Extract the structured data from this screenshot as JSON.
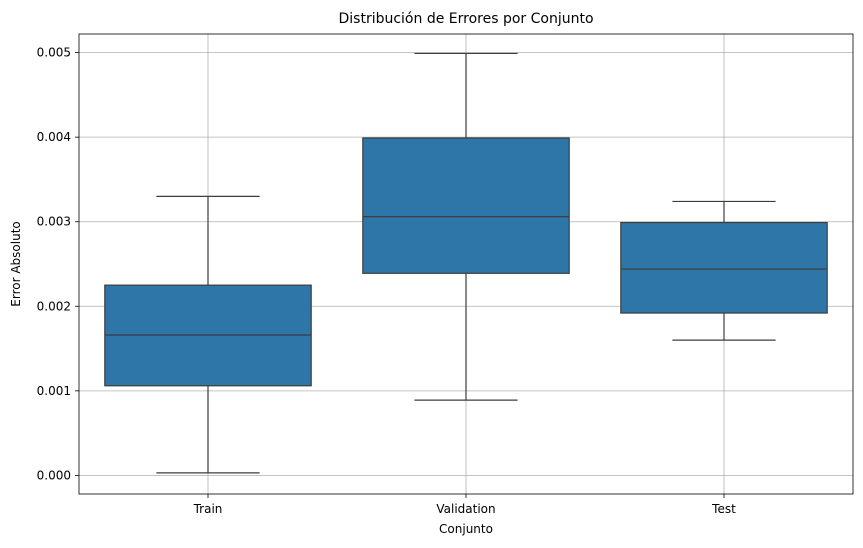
{
  "chart_data": {
    "type": "box",
    "title": "Distribución de Errores por Conjunto",
    "xlabel": "Conjunto",
    "ylabel": "Error Absoluto",
    "ylim": [
      -0.00022,
      0.00522
    ],
    "yticks": [
      0.0,
      0.001,
      0.002,
      0.003,
      0.004,
      0.005
    ],
    "ytick_labels": [
      "0.000",
      "0.001",
      "0.002",
      "0.003",
      "0.004",
      "0.005"
    ],
    "grid": true,
    "color": "#2e75a8",
    "categories": [
      "Train",
      "Validation",
      "Test"
    ],
    "boxes": [
      {
        "category": "Train",
        "whisker_low": 3e-05,
        "q1": 0.00106,
        "median": 0.00166,
        "q3": 0.00225,
        "whisker_high": 0.0033
      },
      {
        "category": "Validation",
        "whisker_low": 0.00089,
        "q1": 0.00239,
        "median": 0.00306,
        "q3": 0.00399,
        "whisker_high": 0.00499
      },
      {
        "category": "Test",
        "whisker_low": 0.0016,
        "q1": 0.00192,
        "median": 0.00244,
        "q3": 0.00299,
        "whisker_high": 0.00324
      }
    ]
  }
}
